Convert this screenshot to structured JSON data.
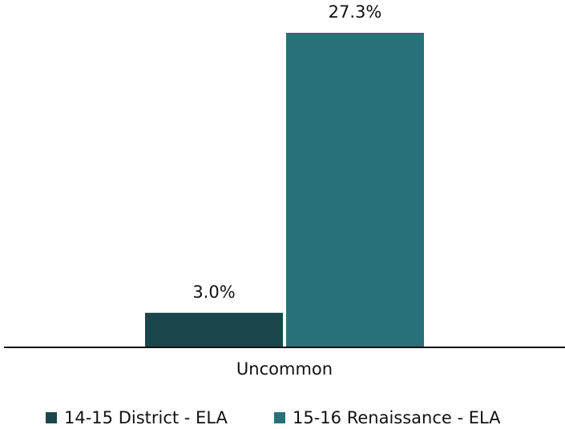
{
  "chart_data": {
    "type": "bar",
    "categories": [
      "Uncommon"
    ],
    "series": [
      {
        "name": "14-15 District - ELA",
        "color": "#1b464b",
        "values": [
          3.0
        ],
        "value_labels": [
          "3.0%"
        ]
      },
      {
        "name": "15-16 Renaissance - ELA",
        "color": "#287178",
        "values": [
          27.3
        ],
        "value_labels": [
          "27.3%"
        ]
      }
    ]
  }
}
